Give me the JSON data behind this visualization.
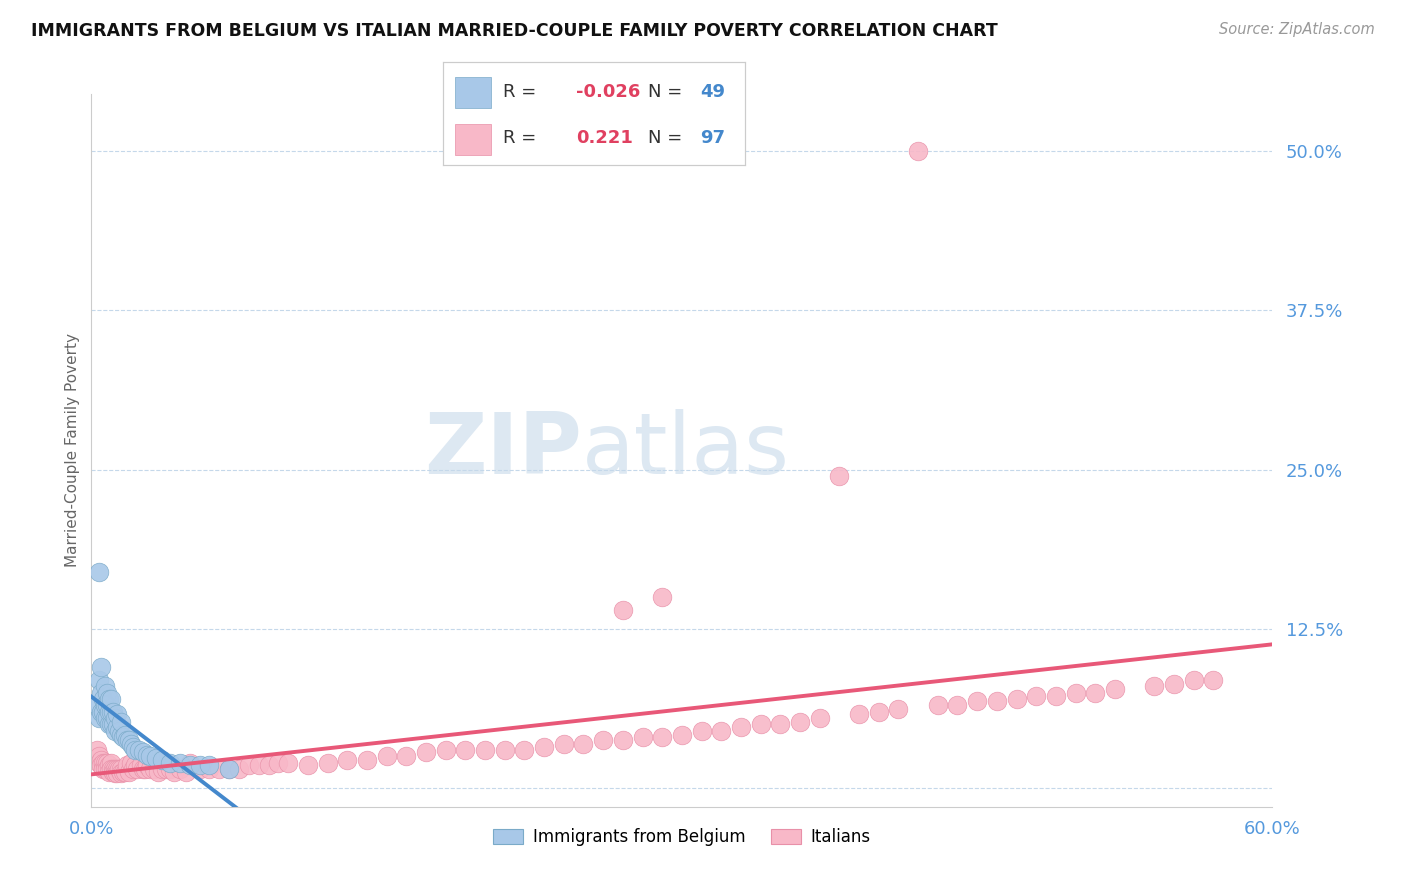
{
  "title": "IMMIGRANTS FROM BELGIUM VS ITALIAN MARRIED-COUPLE FAMILY POVERTY CORRELATION CHART",
  "source": "Source: ZipAtlas.com",
  "ylabel": "Married-Couple Family Poverty",
  "belgium_color": "#a8c8e8",
  "belgium_edge": "#7aaac8",
  "italian_color": "#f8b8c8",
  "italian_edge": "#e890a8",
  "trend_belgium_solid_color": "#4488cc",
  "trend_italian_solid_color": "#e85878",
  "trend_dashed_color": "#99bbdd",
  "xmin": 0.0,
  "xmax": 0.6,
  "ymin": -0.015,
  "ymax": 0.545,
  "ytick_vals": [
    0.0,
    0.125,
    0.25,
    0.375,
    0.5
  ],
  "ytick_labels": [
    "",
    "12.5%",
    "25.0%",
    "37.5%",
    "50.0%"
  ],
  "tick_color": "#5599dd",
  "watermark_zip": "ZIP",
  "watermark_atlas": "atlas",
  "bel_R": "-0.026",
  "bel_N": "49",
  "ita_R": "0.221",
  "ita_N": "97"
}
